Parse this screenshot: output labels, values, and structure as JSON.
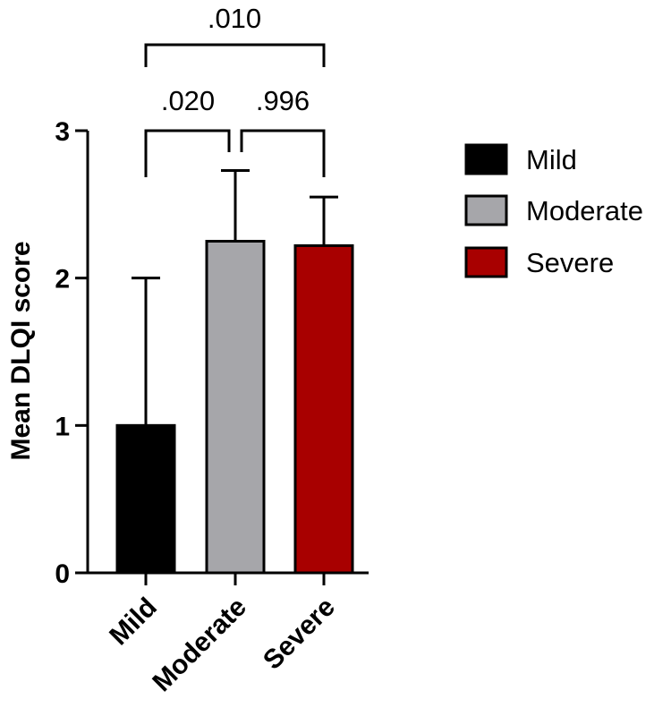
{
  "chart_data": {
    "type": "bar",
    "title": "",
    "xlabel": "",
    "ylabel": "Mean DLQI score",
    "ylim": [
      0,
      3
    ],
    "yticks": [
      0,
      1,
      2,
      3
    ],
    "categories": [
      "Mild",
      "Moderate",
      "Severe"
    ],
    "values": [
      1.0,
      2.25,
      2.22
    ],
    "error_upper": [
      2.0,
      2.73,
      2.55
    ],
    "colors": [
      "#000000",
      "#a6a6aa",
      "#a80000"
    ],
    "legend": {
      "position": "right",
      "entries": [
        {
          "label": "Mild",
          "color": "#000000"
        },
        {
          "label": "Moderate",
          "color": "#a6a6aa"
        },
        {
          "label": "Severe",
          "color": "#a80000"
        }
      ]
    },
    "comparisons": [
      {
        "from": "Mild",
        "to": "Moderate",
        "p": ".020"
      },
      {
        "from": "Moderate",
        "to": "Severe",
        "p": ".996"
      },
      {
        "from": "Mild",
        "to": "Severe",
        "p": ".010"
      }
    ]
  }
}
